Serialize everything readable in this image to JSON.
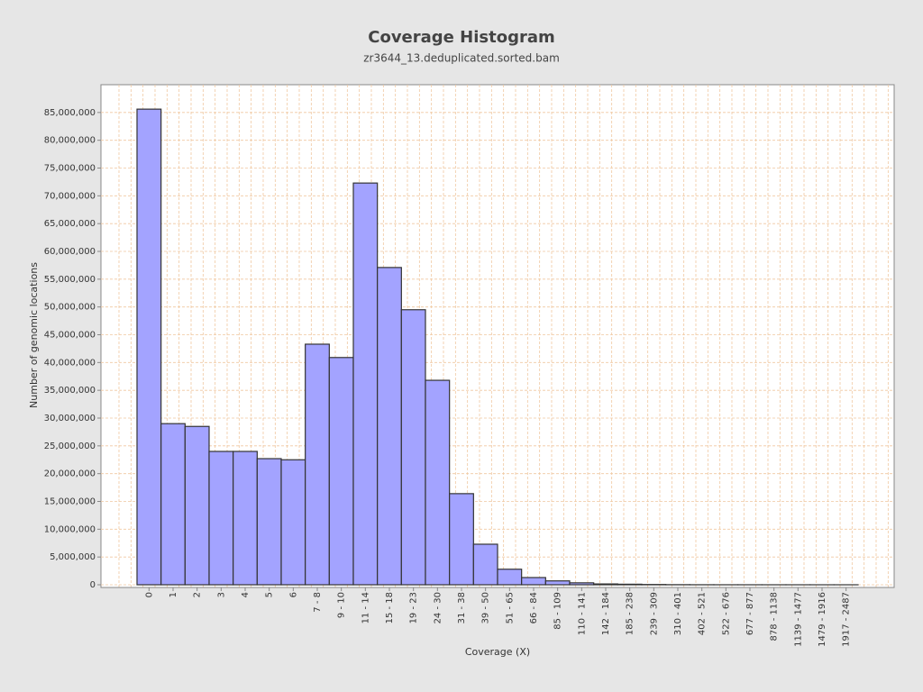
{
  "chart_data": {
    "type": "bar",
    "title": "Coverage Histogram",
    "subtitle": "zr3644_13.deduplicated.sorted.bam",
    "x_label": "Coverage (X)",
    "y_label": "Number of genomic locations",
    "categories": [
      "0",
      "1",
      "2",
      "3",
      "4",
      "5",
      "6",
      "7 - 8",
      "9 - 10",
      "11 - 14",
      "15 - 18",
      "19 - 23",
      "24 - 30",
      "31 - 38",
      "39 - 50",
      "51 - 65",
      "66 - 84",
      "85 - 109",
      "110 - 141",
      "142 - 184",
      "185 - 238",
      "239 - 309",
      "310 - 401",
      "402 - 521",
      "522 - 676",
      "677 - 877",
      "878 - 1138",
      "1139 - 1477",
      "1479 - 1916",
      "1917 - 2487"
    ],
    "values": [
      85600000,
      29000000,
      28500000,
      24000000,
      24000000,
      22700000,
      22500000,
      43300000,
      40900000,
      72300000,
      57100000,
      49500000,
      36800000,
      16400000,
      7300000,
      2800000,
      1300000,
      700000,
      350000,
      150000,
      100000,
      50000,
      20000,
      10000,
      5000,
      3000,
      2000,
      1000,
      500,
      300
    ],
    "color": "#a3a3ff",
    "ylim": [
      0,
      90000000
    ],
    "yticks": [
      0,
      {
        "value": 5000000,
        "label": "5,000,000"
      },
      {
        "value": 10000000,
        "label": "10,000,000"
      },
      {
        "value": 15000000,
        "label": "15,000,000"
      },
      {
        "value": 20000000,
        "label": "20,000,000"
      },
      {
        "value": 25000000,
        "label": "25,000,000"
      },
      {
        "value": 30000000,
        "label": "30,000,000"
      },
      {
        "value": 35000000,
        "label": "35,000,000"
      },
      {
        "value": 40000000,
        "label": "40,000,000"
      },
      {
        "value": 45000000,
        "label": "45,000,000"
      },
      {
        "value": 50000000,
        "label": "50,000,000"
      },
      {
        "value": 55000000,
        "label": "55,000,000"
      },
      {
        "value": 60000000,
        "label": "60,000,000"
      },
      {
        "value": 65000000,
        "label": "65,000,000"
      },
      {
        "value": 70000000,
        "label": "70,000,000"
      },
      {
        "value": 75000000,
        "label": "75,000,000"
      },
      {
        "value": 80000000,
        "label": "80,000,000"
      },
      {
        "value": 85000000,
        "label": "85,000,000"
      }
    ],
    "grid": true
  }
}
